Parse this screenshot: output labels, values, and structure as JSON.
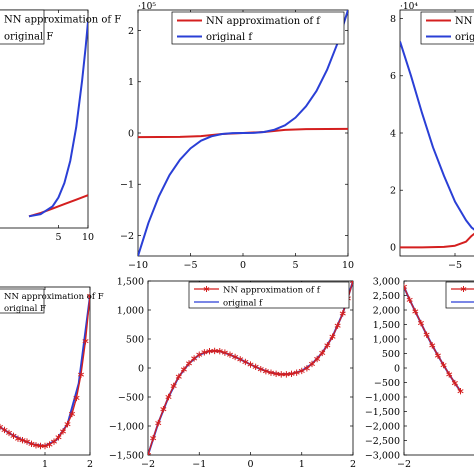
{
  "colors": {
    "nn": "#d41f1f",
    "original": "#2a3fd6",
    "axis": "#000000",
    "background": "#ffffff"
  },
  "chart_data": [
    {
      "type": "line",
      "id": "top-left",
      "title": "",
      "xlabel": "",
      "ylabel": "",
      "xlim": [
        -10,
        10
      ],
      "xticks": [
        5,
        10
      ],
      "xtick_labels": [
        "5",
        "10"
      ],
      "yticks": [],
      "ytick_labels": [],
      "legend": [
        "NN approximation of F",
        "original F"
      ],
      "legend_visible_text": "ation of F",
      "series": [
        {
          "name": "NN approximation of F",
          "color_key": "nn",
          "x": [
            0,
            2,
            4,
            6,
            8,
            10
          ],
          "y": [
            0.0,
            0.03,
            0.07,
            0.11,
            0.15,
            0.19
          ]
        },
        {
          "name": "original F",
          "color_key": "original",
          "x": [
            0,
            2,
            4,
            5,
            6,
            7,
            8,
            9,
            9.6,
            10
          ],
          "y": [
            0.0,
            0.02,
            0.09,
            0.17,
            0.3,
            0.5,
            0.8,
            1.22,
            1.52,
            1.75
          ]
        }
      ]
    },
    {
      "type": "line",
      "id": "top-middle",
      "title": "",
      "xlabel": "",
      "ylabel": "",
      "xlim": [
        -10,
        10
      ],
      "ylim": [
        -2.4,
        2.4
      ],
      "y_exponent_label": "·10⁵",
      "xticks": [
        -10,
        -5,
        0,
        5,
        10
      ],
      "xtick_labels": [
        "−10",
        "−5",
        "0",
        "5",
        "10"
      ],
      "yticks": [
        -2,
        -1,
        0,
        1,
        2
      ],
      "ytick_labels": [
        "−2",
        "−1",
        "0",
        "1",
        "2"
      ],
      "legend": [
        "NN approximation of f",
        "original f"
      ],
      "legend_position": "top-right",
      "series": [
        {
          "name": "NN approximation of f",
          "color_key": "nn",
          "x": [
            -10,
            -8,
            -6,
            -4,
            -2,
            0,
            2,
            4,
            6,
            8,
            10
          ],
          "y": [
            -0.08,
            -0.078,
            -0.075,
            -0.06,
            -0.02,
            0.0,
            0.02,
            0.06,
            0.075,
            0.078,
            0.08
          ]
        },
        {
          "name": "original f",
          "color_key": "original",
          "x": [
            -10,
            -9,
            -8,
            -7,
            -6,
            -5,
            -4,
            -3,
            -2,
            -1,
            0,
            1,
            2,
            3,
            4,
            5,
            6,
            7,
            8,
            9,
            10
          ],
          "y": [
            -2.4,
            -1.75,
            -1.23,
            -0.82,
            -0.52,
            -0.3,
            -0.15,
            -0.065,
            -0.019,
            -0.002,
            0,
            0.002,
            0.019,
            0.065,
            0.15,
            0.3,
            0.52,
            0.82,
            1.23,
            1.75,
            2.4
          ]
        }
      ]
    },
    {
      "type": "line",
      "id": "top-right",
      "title": "",
      "xlabel": "",
      "ylabel": "",
      "xlim": [
        -10,
        10
      ],
      "ylim": [
        -0.3,
        8.3
      ],
      "y_exponent_label": "·10⁴",
      "xticks": [
        -5
      ],
      "xtick_labels": [
        "−5"
      ],
      "yticks": [
        0,
        2,
        4,
        6,
        8
      ],
      "ytick_labels": [
        "0",
        "2",
        "4",
        "6",
        "8"
      ],
      "legend": [
        "NN approximation of f",
        "original f"
      ],
      "legend_visible_text": [
        "NN",
        "orig"
      ],
      "series": [
        {
          "name": "NN approximation of f",
          "color_key": "nn",
          "x": [
            -10,
            -8,
            -6,
            -5,
            -4,
            -3.5,
            -3
          ],
          "y": [
            0.0,
            0.0,
            0.02,
            0.06,
            0.2,
            0.4,
            0.55
          ]
        },
        {
          "name": "original f",
          "color_key": "original",
          "x": [
            -10,
            -9,
            -8,
            -7,
            -6,
            -5,
            -4,
            -3.5,
            -3
          ],
          "y": [
            7.2,
            6.0,
            4.7,
            3.5,
            2.5,
            1.6,
            0.95,
            0.7,
            0.55
          ]
        }
      ]
    },
    {
      "type": "line",
      "id": "bottom-left",
      "title": "",
      "xlabel": "",
      "ylabel": "",
      "xlim": [
        -2,
        2
      ],
      "xticks": [
        1,
        2
      ],
      "xtick_labels": [
        "1",
        "2"
      ],
      "yticks": [],
      "ytick_labels": [],
      "legend": [
        "NN approximation of F",
        "original F"
      ],
      "legend_visible_text": "ation of F",
      "series": [
        {
          "name": "original F",
          "color_key": "original",
          "x": [
            -0.5,
            -0.25,
            0,
            0.25,
            0.5,
            0.75,
            1.0,
            1.25,
            1.5,
            1.75,
            2.0
          ],
          "y": [
            0.22,
            0.16,
            0.1,
            0.05,
            0.01,
            -0.02,
            -0.03,
            0.01,
            0.12,
            0.4,
            1.0
          ]
        },
        {
          "name": "NN approximation of F",
          "color_key": "nn",
          "markers": "star",
          "x": [
            -0.4,
            -0.3,
            -0.2,
            -0.1,
            0,
            0.1,
            0.2,
            0.3,
            0.4,
            0.5,
            0.6,
            0.7,
            0.8,
            0.9,
            1.0,
            1.1,
            1.2,
            1.3,
            1.4,
            1.5,
            1.6,
            1.7,
            1.8,
            1.9,
            2.0
          ],
          "y": [
            0.2,
            0.17,
            0.15,
            0.12,
            0.1,
            0.08,
            0.06,
            0.04,
            0.02,
            0.01,
            0.0,
            -0.015,
            -0.025,
            -0.03,
            -0.03,
            -0.02,
            0.0,
            0.03,
            0.07,
            0.12,
            0.19,
            0.3,
            0.46,
            0.69,
            1.0
          ]
        }
      ]
    },
    {
      "type": "line",
      "id": "bottom-middle",
      "title": "",
      "xlabel": "",
      "ylabel": "",
      "xlim": [
        -2,
        2
      ],
      "ylim": [
        -1500,
        1500
      ],
      "xticks": [
        -2,
        -1,
        0,
        1,
        2
      ],
      "xtick_labels": [
        "−2",
        "−1",
        "0",
        "1",
        "2"
      ],
      "yticks": [
        -1500,
        -1000,
        -500,
        0,
        500,
        1000,
        1500
      ],
      "ytick_labels": [
        "−1,500",
        "−1,000",
        "−500",
        "0",
        "500",
        "1,000",
        "1,500"
      ],
      "legend": [
        "NN approximation of f",
        "original f"
      ],
      "legend_position": "top-right",
      "series": [
        {
          "name": "original f",
          "color_key": "original",
          "x": [
            -2,
            -1.8,
            -1.6,
            -1.4,
            -1.2,
            -1.0,
            -0.8,
            -0.6,
            -0.4,
            -0.2,
            0,
            0.2,
            0.4,
            0.6,
            0.8,
            1.0,
            1.2,
            1.4,
            1.6,
            1.8,
            2.0
          ],
          "y": [
            -1500,
            -950,
            -500,
            -150,
            80,
            230,
            290,
            290,
            230,
            150,
            60,
            -20,
            -80,
            -110,
            -100,
            -50,
            70,
            260,
            540,
            940,
            1500
          ]
        },
        {
          "name": "NN approximation of f",
          "color_key": "nn",
          "markers": "star",
          "x": [
            -2,
            -1.9,
            -1.8,
            -1.7,
            -1.6,
            -1.5,
            -1.4,
            -1.3,
            -1.2,
            -1.1,
            -1.0,
            -0.9,
            -0.8,
            -0.7,
            -0.6,
            -0.5,
            -0.4,
            -0.3,
            -0.2,
            -0.1,
            0,
            0.1,
            0.2,
            0.3,
            0.4,
            0.5,
            0.6,
            0.7,
            0.8,
            0.9,
            1.0,
            1.1,
            1.2,
            1.3,
            1.4,
            1.5,
            1.6,
            1.7,
            1.8,
            1.9,
            2.0
          ],
          "y": [
            -1500,
            -1210,
            -950,
            -710,
            -500,
            -310,
            -150,
            -25,
            80,
            165,
            230,
            270,
            290,
            295,
            290,
            265,
            230,
            190,
            150,
            105,
            60,
            20,
            -20,
            -55,
            -80,
            -100,
            -110,
            -110,
            -100,
            -80,
            -50,
            -5,
            70,
            155,
            260,
            390,
            540,
            730,
            940,
            1200,
            1500
          ]
        }
      ]
    },
    {
      "type": "line",
      "id": "bottom-right",
      "title": "",
      "xlabel": "",
      "ylabel": "",
      "xlim": [
        -2,
        2
      ],
      "ylim": [
        -3000,
        3000
      ],
      "xticks": [
        -2
      ],
      "xtick_labels": [
        "−2"
      ],
      "yticks": [
        -3000,
        -2500,
        -2000,
        -1500,
        -1000,
        -500,
        0,
        500,
        1000,
        1500,
        2000,
        2500,
        3000
      ],
      "ytick_labels": [
        "−3,000",
        "−2,500",
        "−2,000",
        "−1,500",
        "−1,000",
        "−500",
        "0",
        "500",
        "1,000",
        "1,500",
        "2,000",
        "2,500",
        "3,000"
      ],
      "legend": [
        "NN approximation of f",
        "original f"
      ],
      "legend_visible_text": [
        "N",
        "o"
      ],
      "series": [
        {
          "name": "original f",
          "color_key": "original",
          "x": [
            -2.0,
            -1.9,
            -1.8,
            -1.7,
            -1.6,
            -1.5,
            -1.4,
            -1.3,
            -1.2,
            -1.1,
            -1.0
          ],
          "y": [
            2800,
            2350,
            1950,
            1550,
            1150,
            780,
            430,
            100,
            -220,
            -520,
            -800
          ]
        },
        {
          "name": "NN approximation of f",
          "color_key": "nn",
          "markers": "star",
          "x": [
            -2.0,
            -1.9,
            -1.8,
            -1.7,
            -1.6,
            -1.5,
            -1.4,
            -1.3,
            -1.2,
            -1.1,
            -1.0
          ],
          "y": [
            2800,
            2350,
            1950,
            1550,
            1150,
            780,
            430,
            100,
            -220,
            -520,
            -800
          ]
        }
      ]
    }
  ]
}
